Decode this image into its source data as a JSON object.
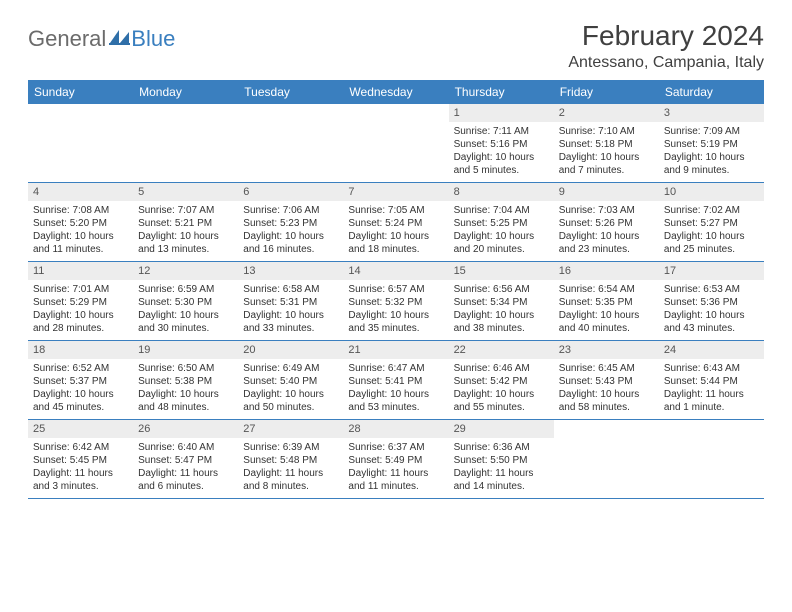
{
  "brand": {
    "word1": "General",
    "word2": "Blue"
  },
  "title": "February 2024",
  "location": "Antessano, Campania, Italy",
  "colors": {
    "header_bg": "#3a7fbf",
    "header_text": "#ffffff",
    "daynum_bg": "#ededed",
    "row_border": "#3a7fbf",
    "text": "#333333",
    "title_color": "#404040"
  },
  "weekdays": [
    "Sunday",
    "Monday",
    "Tuesday",
    "Wednesday",
    "Thursday",
    "Friday",
    "Saturday"
  ],
  "weeks": [
    [
      null,
      null,
      null,
      null,
      {
        "n": "1",
        "sr": "7:11 AM",
        "ss": "5:16 PM",
        "dl": "10 hours and 5 minutes."
      },
      {
        "n": "2",
        "sr": "7:10 AM",
        "ss": "5:18 PM",
        "dl": "10 hours and 7 minutes."
      },
      {
        "n": "3",
        "sr": "7:09 AM",
        "ss": "5:19 PM",
        "dl": "10 hours and 9 minutes."
      }
    ],
    [
      {
        "n": "4",
        "sr": "7:08 AM",
        "ss": "5:20 PM",
        "dl": "10 hours and 11 minutes."
      },
      {
        "n": "5",
        "sr": "7:07 AM",
        "ss": "5:21 PM",
        "dl": "10 hours and 13 minutes."
      },
      {
        "n": "6",
        "sr": "7:06 AM",
        "ss": "5:23 PM",
        "dl": "10 hours and 16 minutes."
      },
      {
        "n": "7",
        "sr": "7:05 AM",
        "ss": "5:24 PM",
        "dl": "10 hours and 18 minutes."
      },
      {
        "n": "8",
        "sr": "7:04 AM",
        "ss": "5:25 PM",
        "dl": "10 hours and 20 minutes."
      },
      {
        "n": "9",
        "sr": "7:03 AM",
        "ss": "5:26 PM",
        "dl": "10 hours and 23 minutes."
      },
      {
        "n": "10",
        "sr": "7:02 AM",
        "ss": "5:27 PM",
        "dl": "10 hours and 25 minutes."
      }
    ],
    [
      {
        "n": "11",
        "sr": "7:01 AM",
        "ss": "5:29 PM",
        "dl": "10 hours and 28 minutes."
      },
      {
        "n": "12",
        "sr": "6:59 AM",
        "ss": "5:30 PM",
        "dl": "10 hours and 30 minutes."
      },
      {
        "n": "13",
        "sr": "6:58 AM",
        "ss": "5:31 PM",
        "dl": "10 hours and 33 minutes."
      },
      {
        "n": "14",
        "sr": "6:57 AM",
        "ss": "5:32 PM",
        "dl": "10 hours and 35 minutes."
      },
      {
        "n": "15",
        "sr": "6:56 AM",
        "ss": "5:34 PM",
        "dl": "10 hours and 38 minutes."
      },
      {
        "n": "16",
        "sr": "6:54 AM",
        "ss": "5:35 PM",
        "dl": "10 hours and 40 minutes."
      },
      {
        "n": "17",
        "sr": "6:53 AM",
        "ss": "5:36 PM",
        "dl": "10 hours and 43 minutes."
      }
    ],
    [
      {
        "n": "18",
        "sr": "6:52 AM",
        "ss": "5:37 PM",
        "dl": "10 hours and 45 minutes."
      },
      {
        "n": "19",
        "sr": "6:50 AM",
        "ss": "5:38 PM",
        "dl": "10 hours and 48 minutes."
      },
      {
        "n": "20",
        "sr": "6:49 AM",
        "ss": "5:40 PM",
        "dl": "10 hours and 50 minutes."
      },
      {
        "n": "21",
        "sr": "6:47 AM",
        "ss": "5:41 PM",
        "dl": "10 hours and 53 minutes."
      },
      {
        "n": "22",
        "sr": "6:46 AM",
        "ss": "5:42 PM",
        "dl": "10 hours and 55 minutes."
      },
      {
        "n": "23",
        "sr": "6:45 AM",
        "ss": "5:43 PM",
        "dl": "10 hours and 58 minutes."
      },
      {
        "n": "24",
        "sr": "6:43 AM",
        "ss": "5:44 PM",
        "dl": "11 hours and 1 minute."
      }
    ],
    [
      {
        "n": "25",
        "sr": "6:42 AM",
        "ss": "5:45 PM",
        "dl": "11 hours and 3 minutes."
      },
      {
        "n": "26",
        "sr": "6:40 AM",
        "ss": "5:47 PM",
        "dl": "11 hours and 6 minutes."
      },
      {
        "n": "27",
        "sr": "6:39 AM",
        "ss": "5:48 PM",
        "dl": "11 hours and 8 minutes."
      },
      {
        "n": "28",
        "sr": "6:37 AM",
        "ss": "5:49 PM",
        "dl": "11 hours and 11 minutes."
      },
      {
        "n": "29",
        "sr": "6:36 AM",
        "ss": "5:50 PM",
        "dl": "11 hours and 14 minutes."
      },
      null,
      null
    ]
  ],
  "labels": {
    "sunrise": "Sunrise:",
    "sunset": "Sunset:",
    "daylight": "Daylight:"
  }
}
